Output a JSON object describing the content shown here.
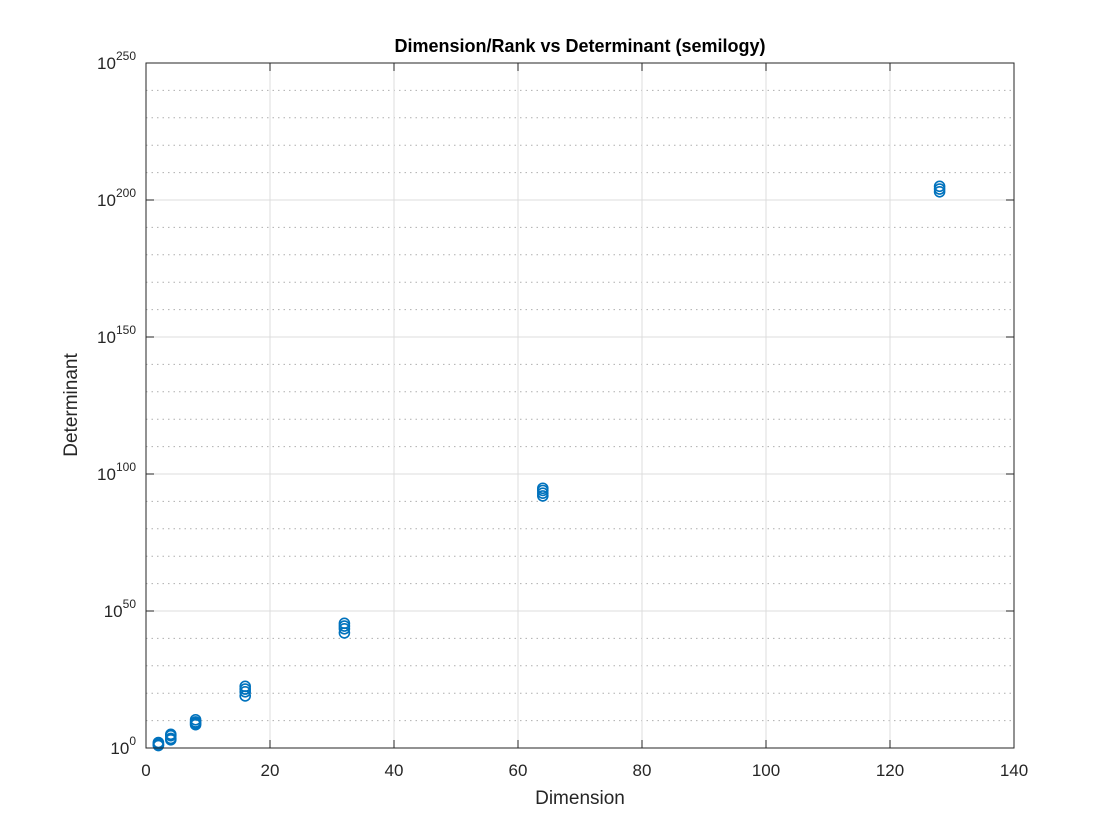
{
  "chart_data": {
    "type": "scatter",
    "title": "Dimension/Rank vs Determinant (semilogy)",
    "xlabel": "Dimension",
    "ylabel": "Determinant",
    "xscale": "linear",
    "yscale": "log",
    "xlim": [
      0,
      140
    ],
    "ylim_exponent": [
      0,
      250
    ],
    "xticks": [
      0,
      20,
      40,
      60,
      80,
      100,
      120,
      140
    ],
    "yticks": [
      {
        "base": "10",
        "exp": "0",
        "value_exponent": 0
      },
      {
        "base": "10",
        "exp": "50",
        "value_exponent": 50
      },
      {
        "base": "10",
        "exp": "100",
        "value_exponent": 100
      },
      {
        "base": "10",
        "exp": "150",
        "value_exponent": 150
      },
      {
        "base": "10",
        "exp": "200",
        "value_exponent": 200
      },
      {
        "base": "10",
        "exp": "250",
        "value_exponent": 250
      }
    ],
    "grid": true,
    "minor_grid": true,
    "marker": "circle",
    "marker_color": "#0072bd",
    "series": [
      {
        "name": "determinant",
        "points": [
          {
            "x": 2,
            "y_exponent": 1.5
          },
          {
            "x": 2,
            "y_exponent": 0.9
          },
          {
            "x": 2,
            "y_exponent": 2.0
          },
          {
            "x": 2,
            "y_exponent": 1.2
          },
          {
            "x": 4,
            "y_exponent": 3.5
          },
          {
            "x": 4,
            "y_exponent": 4.5
          },
          {
            "x": 4,
            "y_exponent": 5.0
          },
          {
            "x": 4,
            "y_exponent": 3.0
          },
          {
            "x": 8,
            "y_exponent": 8.5
          },
          {
            "x": 8,
            "y_exponent": 9.5
          },
          {
            "x": 8,
            "y_exponent": 10.3
          },
          {
            "x": 8,
            "y_exponent": 9.0
          },
          {
            "x": 16,
            "y_exponent": 19.0
          },
          {
            "x": 16,
            "y_exponent": 20.5
          },
          {
            "x": 16,
            "y_exponent": 21.5
          },
          {
            "x": 16,
            "y_exponent": 22.5
          },
          {
            "x": 32,
            "y_exponent": 42.0
          },
          {
            "x": 32,
            "y_exponent": 43.5
          },
          {
            "x": 32,
            "y_exponent": 44.5
          },
          {
            "x": 32,
            "y_exponent": 45.5
          },
          {
            "x": 64,
            "y_exponent": 92.0
          },
          {
            "x": 64,
            "y_exponent": 93.0
          },
          {
            "x": 64,
            "y_exponent": 94.0
          },
          {
            "x": 64,
            "y_exponent": 94.8
          },
          {
            "x": 128,
            "y_exponent": 203.0
          },
          {
            "x": 128,
            "y_exponent": 204.0
          },
          {
            "x": 128,
            "y_exponent": 205.0
          }
        ]
      }
    ]
  }
}
